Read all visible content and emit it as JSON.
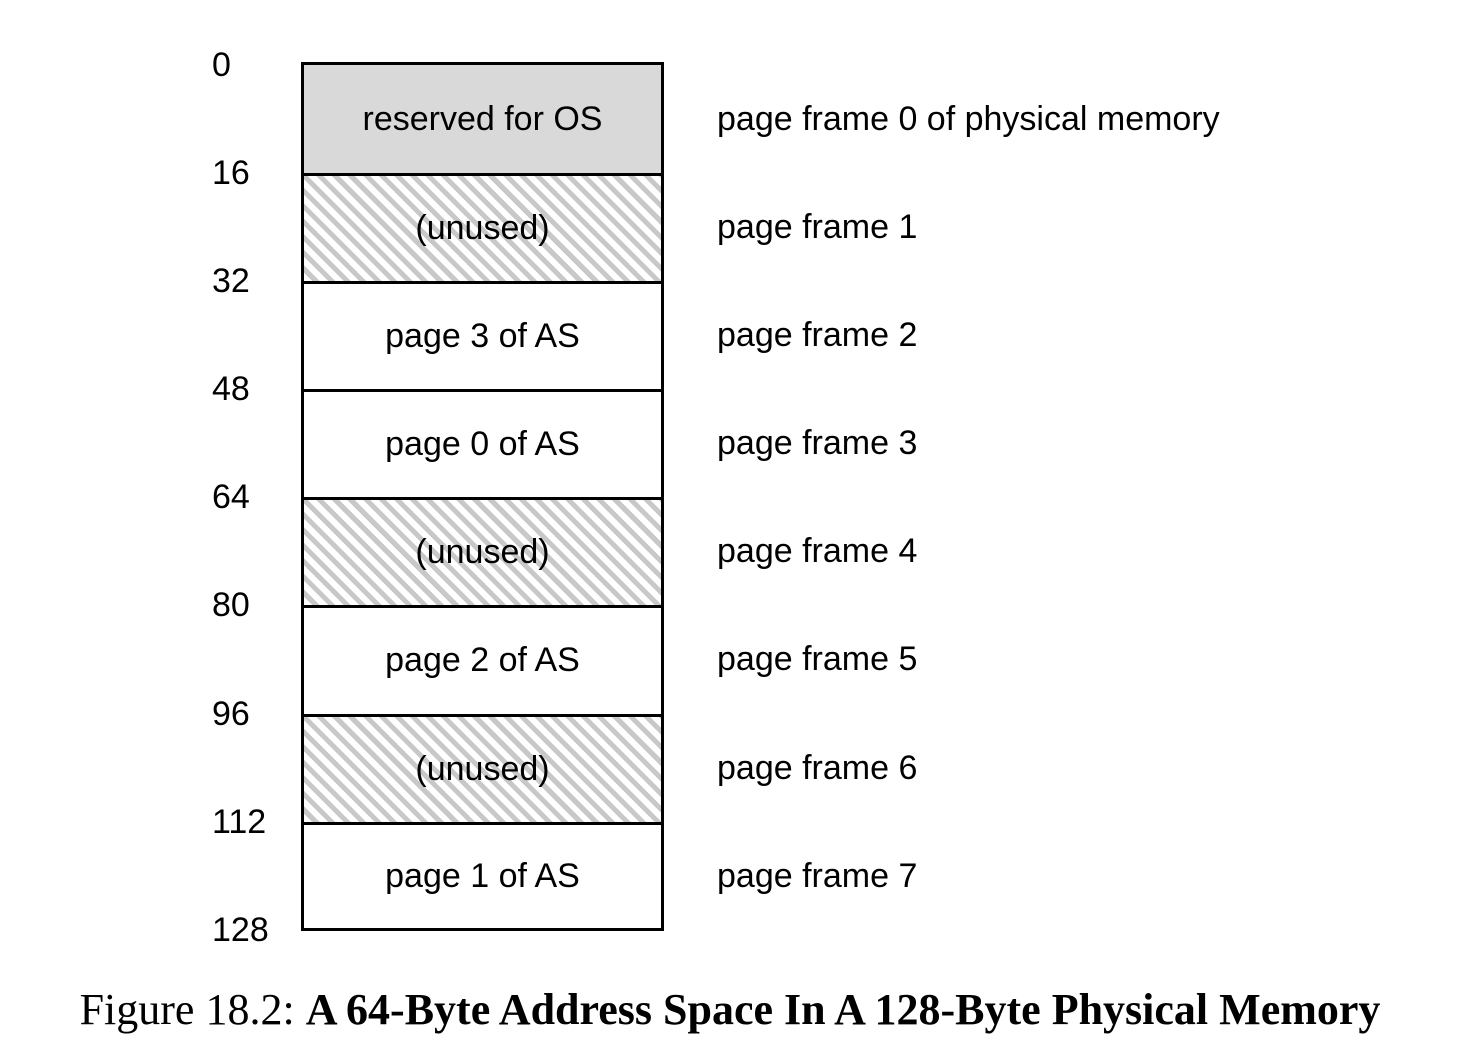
{
  "diagram": {
    "addresses": [
      "0",
      "16",
      "32",
      "48",
      "64",
      "80",
      "96",
      "112",
      "128"
    ],
    "frames": [
      {
        "content": "reserved for OS",
        "fill": "reserved",
        "label": "page frame 0 of physical memory"
      },
      {
        "content": "(unused)",
        "fill": "unused",
        "label": "page frame 1"
      },
      {
        "content": "page 3 of AS",
        "fill": "plain",
        "label": "page frame 2"
      },
      {
        "content": "page 0 of AS",
        "fill": "plain",
        "label": "page frame 3"
      },
      {
        "content": "(unused)",
        "fill": "unused",
        "label": "page frame 4"
      },
      {
        "content": "page 2 of AS",
        "fill": "plain",
        "label": "page frame 5"
      },
      {
        "content": "(unused)",
        "fill": "unused",
        "label": "page frame 6"
      },
      {
        "content": "page 1 of AS",
        "fill": "plain",
        "label": "page frame 7"
      }
    ],
    "colors": {
      "reserved": "#d9d9d9",
      "hatch": "#c8c8c8",
      "border": "#000000"
    }
  },
  "caption": {
    "prefix": "Figure 18.2:",
    "title": "A 64-Byte Address Space In A 128-Byte Physical Memory"
  }
}
